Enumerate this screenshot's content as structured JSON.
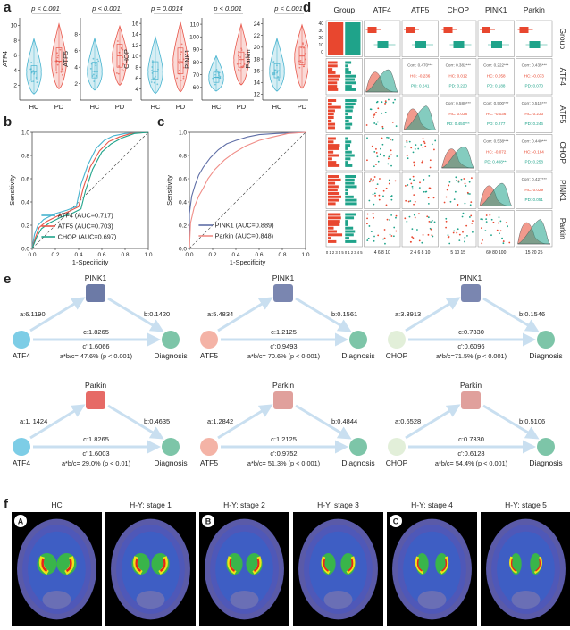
{
  "panel_letters": {
    "a": "a",
    "b": "b",
    "c": "c",
    "d": "d",
    "e": "e",
    "f": "f"
  },
  "violin": {
    "groups": [
      "HC",
      "PD"
    ],
    "plots": [
      {
        "ylabel": "ATF4",
        "p": "p < 0.001",
        "ticks": [
          "2",
          "4",
          "6",
          "8",
          "10"
        ],
        "ylim": [
          0,
          11
        ],
        "hc": {
          "median": 3.8,
          "q1": 2.7,
          "q3": 4.6,
          "min": 0.8,
          "max": 8.2
        },
        "pd": {
          "median": 5.2,
          "q1": 3.9,
          "q3": 7.0,
          "min": 1.5,
          "max": 10.2
        }
      },
      {
        "ylabel": "ATF5",
        "p": "p < 0.001",
        "ticks": [
          "2",
          "4",
          "6",
          "8"
        ],
        "ylim": [
          0,
          10
        ],
        "hc": {
          "median": 3.5,
          "q1": 2.7,
          "q3": 4.6,
          "min": 1.2,
          "max": 7.5
        },
        "pd": {
          "median": 5.4,
          "q1": 4.0,
          "q3": 6.8,
          "min": 1.8,
          "max": 9.0
        }
      },
      {
        "ylabel": "CHOP",
        "p": "p = 0.0014",
        "ticks": [
          "4",
          "6",
          "8",
          "10",
          "12",
          "14",
          "16"
        ],
        "ylim": [
          2,
          17
        ],
        "hc": {
          "median": 7.2,
          "q1": 5.8,
          "q3": 9.0,
          "min": 3.2,
          "max": 13.5
        },
        "pd": {
          "median": 9.0,
          "q1": 6.8,
          "q3": 11.5,
          "min": 3.5,
          "max": 16.2
        }
      },
      {
        "ylabel": "PINK1",
        "p": "p < 0.001",
        "ticks": [
          "60",
          "70",
          "80",
          "90",
          "100",
          "110"
        ],
        "ylim": [
          50,
          115
        ],
        "hc": {
          "median": 68,
          "q1": 64,
          "q3": 72,
          "min": 57,
          "max": 85
        },
        "pd": {
          "median": 82,
          "q1": 76,
          "q3": 88,
          "min": 62,
          "max": 110
        }
      },
      {
        "ylabel": "Parkin",
        "p": "p < 0.001",
        "ticks": [
          "12",
          "14",
          "16",
          "18",
          "20",
          "22",
          "24"
        ],
        "ylim": [
          11,
          25
        ],
        "hc": {
          "median": 16,
          "q1": 14.8,
          "q3": 17.2,
          "min": 12.5,
          "max": 21.5
        },
        "pd": {
          "median": 18.5,
          "q1": 17.0,
          "q3": 20.0,
          "min": 13.0,
          "max": 23.8
        }
      }
    ]
  },
  "roc_b": {
    "xlabel": "1-Specificity",
    "ylabel": "Sensitivity",
    "ticks": [
      "0.0",
      "0.2",
      "0.4",
      "0.6",
      "0.8",
      "1.0"
    ],
    "series": [
      {
        "name": "ATF4 (AUC=0.717)",
        "color": "#46b3cf",
        "x": [
          0,
          0.02,
          0.05,
          0.1,
          0.2,
          0.3,
          0.38,
          0.42,
          0.48,
          0.55,
          0.62,
          0.7,
          0.8,
          1
        ],
        "y": [
          0,
          0.12,
          0.2,
          0.25,
          0.3,
          0.33,
          0.36,
          0.55,
          0.72,
          0.86,
          0.93,
          0.97,
          0.99,
          1
        ]
      },
      {
        "name": "ATF5 (AUC=0.703)",
        "color": "#e8564a",
        "x": [
          0,
          0.03,
          0.06,
          0.12,
          0.22,
          0.32,
          0.4,
          0.44,
          0.5,
          0.58,
          0.66,
          0.75,
          0.85,
          1
        ],
        "y": [
          0,
          0.1,
          0.18,
          0.23,
          0.28,
          0.32,
          0.36,
          0.52,
          0.7,
          0.84,
          0.92,
          0.96,
          0.99,
          1
        ]
      },
      {
        "name": "CHOP (AUC=0.697)",
        "color": "#1fa38a",
        "x": [
          0,
          0.04,
          0.08,
          0.15,
          0.25,
          0.34,
          0.42,
          0.46,
          0.52,
          0.6,
          0.68,
          0.77,
          0.88,
          1
        ],
        "y": [
          0,
          0.1,
          0.17,
          0.22,
          0.27,
          0.3,
          0.34,
          0.5,
          0.68,
          0.83,
          0.9,
          0.95,
          0.99,
          1
        ]
      }
    ]
  },
  "roc_c": {
    "xlabel": "1-Specificity",
    "ylabel": "Sensitivity",
    "ticks": [
      "0.0",
      "0.2",
      "0.4",
      "0.6",
      "0.8",
      "1.0"
    ],
    "series": [
      {
        "name": "PINK1 (AUC=0.889)",
        "color": "#5f6ea6",
        "x": [
          0,
          0,
          0.02,
          0.05,
          0.08,
          0.12,
          0.18,
          0.25,
          0.32,
          0.4,
          0.5,
          0.6,
          0.75,
          1
        ],
        "y": [
          0,
          0.3,
          0.45,
          0.55,
          0.63,
          0.7,
          0.78,
          0.85,
          0.9,
          0.93,
          0.96,
          0.98,
          0.99,
          1
        ]
      },
      {
        "name": "Parkin (AUC=0.848)",
        "color": "#f08c86",
        "x": [
          0,
          0.01,
          0.04,
          0.08,
          0.12,
          0.16,
          0.22,
          0.3,
          0.38,
          0.48,
          0.6,
          0.72,
          0.85,
          1
        ],
        "y": [
          0,
          0.22,
          0.35,
          0.45,
          0.52,
          0.6,
          0.68,
          0.76,
          0.82,
          0.88,
          0.93,
          0.96,
          0.99,
          1
        ]
      }
    ]
  },
  "matrix": {
    "vars": [
      "Group",
      "ATF4",
      "ATF5",
      "CHOP",
      "PINK1",
      "Parkin"
    ],
    "cells": [
      {
        "r": 1,
        "c": 2,
        "cor": "Corr: 0.470***",
        "hc": "HC: -0.236",
        "pd": "PD: 0.241"
      },
      {
        "r": 1,
        "c": 3,
        "cor": "Corr: 0.382***",
        "hc": "HC: 0.012",
        "pd": "PD: 0.220"
      },
      {
        "r": 1,
        "c": 4,
        "cor": "Corr: 0.222***",
        "hc": "HC: 0.058",
        "pd": "PD: 0.188"
      },
      {
        "r": 1,
        "c": 5,
        "cor": "Corr: 0.435***",
        "hc": "HC: -0.073",
        "pd": "PD: 0.070"
      },
      {
        "r": 2,
        "c": 3,
        "cor": "Corr: 0.580***",
        "hc": "HC: 0.038",
        "pd": "PD: 0.450***"
      },
      {
        "r": 2,
        "c": 4,
        "cor": "Corr: 0.500***",
        "hc": "HC: -0.036",
        "pd": "PD: 0.277"
      },
      {
        "r": 2,
        "c": 5,
        "cor": "Corr: 0.515***",
        "hc": "HC: 0.233",
        "pd": "PD: 0.246"
      },
      {
        "r": 3,
        "c": 4,
        "cor": "Corr: 0.538***",
        "hc": "HC: -0.072",
        "pd": "PD: 0.408***"
      },
      {
        "r": 3,
        "c": 5,
        "cor": "Corr: 0.440***",
        "hc": "HC: -0.164",
        "pd": "PD: 0.258"
      },
      {
        "r": 4,
        "c": 5,
        "cor": "Corr: 0.427***",
        "hc": "HC: 0.029",
        "pd": "PD: 0.051"
      }
    ],
    "group_x_ticks": "0 1 2 3 4 5  0 1 2 3 4 5",
    "bottom_ticks": [
      "4 6 8 10",
      "2 4 6 8 10",
      "5 10 15",
      "60 80 100",
      "15 20 25"
    ],
    "left_ticks": [
      "40",
      "30",
      "20",
      "10",
      "0"
    ]
  },
  "mediation": [
    {
      "mediator": "PINK1",
      "iv": "ATF4",
      "dv": "Diagnosis",
      "a": "a:6.1190",
      "b": "b:0.1420",
      "c": "c:1.8265",
      "cp": "c':1.6066",
      "eff": "a*b/c= 47.6% (p < 0.001)",
      "ivcolor": "#7dcde6",
      "mcolor": "#6c7aa6"
    },
    {
      "mediator": "PINK1",
      "iv": "ATF5",
      "dv": "Diagnosis",
      "a": "a:5.4834",
      "b": "b:0.1561",
      "c": "c:1.2125",
      "cp": "c':0.9493",
      "eff": "a*b/c= 70.6% (p < 0.001)",
      "ivcolor": "#f4b3a6",
      "mcolor": "#7a86b0"
    },
    {
      "mediator": "PINK1",
      "iv": "CHOP",
      "dv": "Diagnosis",
      "a": "a:3.3913",
      "b": "b:0.1546",
      "c": "c:0.7330",
      "cp": "c':0.6096",
      "eff": "a*b/c=71.5% (p < 0.001)",
      "ivcolor": "#e2efd9",
      "mcolor": "#7a86b0"
    },
    {
      "mediator": "Parkin",
      "iv": "ATF4",
      "dv": "Diagnosis",
      "a": "a:1. 1424",
      "b": "b:0.4635",
      "c": "c:1.8265",
      "cp": "c':1.6003",
      "eff": "a*b/c= 29.0% (p < 0.01)",
      "ivcolor": "#7dcde6",
      "mcolor": "#e66a66"
    },
    {
      "mediator": "Parkin",
      "iv": "ATF5",
      "dv": "Diagnosis",
      "a": "a:1.2842",
      "b": "b:0.4844",
      "c": "c:1.2125",
      "cp": "c':0.9752",
      "eff": "a*b/c= 51.3% (p < 0.001)",
      "ivcolor": "#f4b3a6",
      "mcolor": "#e0a09c"
    },
    {
      "mediator": "Parkin",
      "iv": "CHOP",
      "dv": "Diagnosis",
      "a": "a:0.6528",
      "b": "b:0.5106",
      "c": "c:0.7330",
      "cp": "c':0.6128",
      "eff": "a*b/c= 54.4% (p < 0.001)",
      "ivcolor": "#e2efd9",
      "mcolor": "#e0a09c"
    }
  ],
  "diag_color": "#7dc5a8",
  "pet": {
    "labels": [
      "HC",
      "H-Y: stage 1",
      "H-Y: stage 2",
      "H-Y: stage 3",
      "H-Y: stage 4",
      "H-Y: stage 5"
    ],
    "badges": [
      {
        "i": 0,
        "t": "A"
      },
      {
        "i": 2,
        "t": "B"
      },
      {
        "i": 4,
        "t": "C"
      }
    ]
  },
  "colors": {
    "hc": "#46b3cf",
    "pd": "#e8564a",
    "hc_matrix": "#1fa38a",
    "pd_matrix": "#e8472f"
  }
}
